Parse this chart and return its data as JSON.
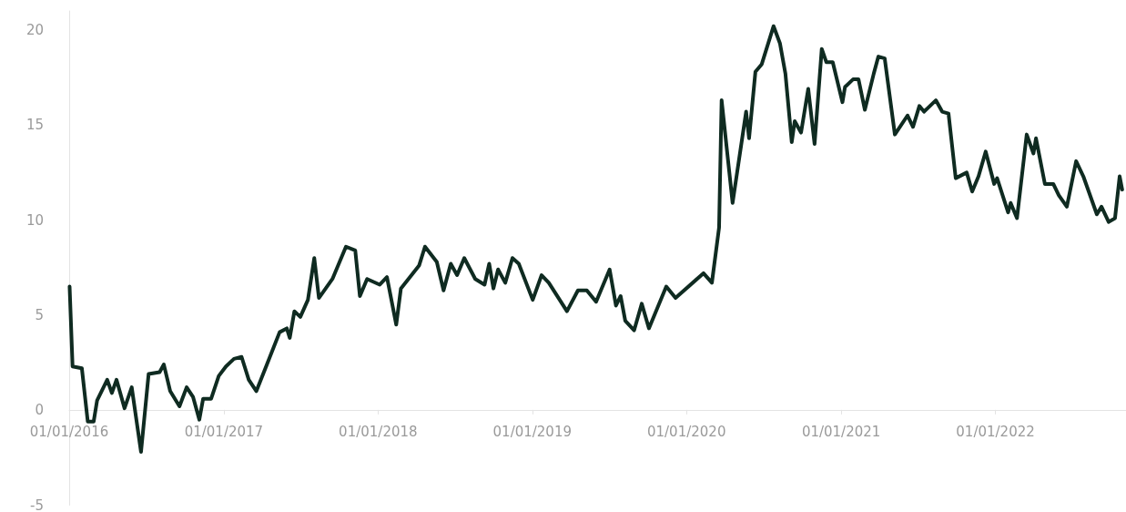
{
  "chart_data": {
    "type": "line",
    "line_style": "solid",
    "marker": "none",
    "grid": false,
    "x": [
      "2016-01-02",
      "2016-01-09",
      "2016-01-31",
      "2016-02-14",
      "2016-02-28",
      "2016-03-07",
      "2016-03-31",
      "2016-04-11",
      "2016-04-22",
      "2016-05-11",
      "2016-05-28",
      "2016-06-19",
      "2016-07-07",
      "2016-08-02",
      "2016-08-12",
      "2016-08-27",
      "2016-09-18",
      "2016-10-05",
      "2016-10-20",
      "2016-11-04",
      "2016-11-13",
      "2016-12-02",
      "2016-12-20",
      "2017-01-06",
      "2017-01-25",
      "2017-02-12",
      "2017-03-01",
      "2017-03-19",
      "2017-04-13",
      "2017-05-13",
      "2017-05-30",
      "2017-06-06",
      "2017-06-17",
      "2017-07-01",
      "2017-07-19",
      "2017-08-03",
      "2017-08-14",
      "2017-09-15",
      "2017-10-17",
      "2017-11-08",
      "2017-11-19",
      "2017-12-06",
      "2018-01-05",
      "2018-01-22",
      "2018-02-13",
      "2018-02-24",
      "2018-04-08",
      "2018-04-22",
      "2018-05-20",
      "2018-06-05",
      "2018-06-22",
      "2018-07-07",
      "2018-07-24",
      "2018-08-19",
      "2018-09-10",
      "2018-09-21",
      "2018-10-01",
      "2018-10-12",
      "2018-10-29",
      "2018-11-15",
      "2018-11-30",
      "2019-01-02",
      "2019-01-23",
      "2019-02-09",
      "2019-03-24",
      "2019-04-19",
      "2019-05-10",
      "2019-06-01",
      "2019-07-03",
      "2019-07-18",
      "2019-07-29",
      "2019-08-09",
      "2019-08-30",
      "2019-09-17",
      "2019-10-04",
      "2019-11-14",
      "2019-12-06",
      "2020-02-10",
      "2020-03-01",
      "2020-03-18",
      "2020-03-24",
      "2020-04-19",
      "2020-05-21",
      "2020-05-28",
      "2020-06-12",
      "2020-06-27",
      "2020-07-25",
      "2020-08-09",
      "2020-08-22",
      "2020-09-06",
      "2020-09-13",
      "2020-09-28",
      "2020-10-15",
      "2020-10-30",
      "2020-11-16",
      "2020-11-27",
      "2020-12-12",
      "2021-01-04",
      "2021-01-10",
      "2021-01-29",
      "2021-02-11",
      "2021-02-26",
      "2021-03-19",
      "2021-03-30",
      "2021-04-14",
      "2021-05-08",
      "2021-06-07",
      "2021-06-20",
      "2021-07-05",
      "2021-07-16",
      "2021-08-13",
      "2021-08-28",
      "2021-09-12",
      "2021-09-29",
      "2021-10-25",
      "2021-11-07",
      "2021-11-22",
      "2021-12-09",
      "2021-12-29",
      "2022-01-05",
      "2022-01-31",
      "2022-02-06",
      "2022-02-21",
      "2022-03-16",
      "2022-04-01",
      "2022-04-07",
      "2022-04-28",
      "2022-05-18",
      "2022-05-31",
      "2022-06-19",
      "2022-07-11",
      "2022-07-28",
      "2022-08-29",
      "2022-09-09",
      "2022-09-26",
      "2022-10-11",
      "2022-10-22",
      "2022-10-28"
    ],
    "series": [
      {
        "color": "#0f2b21",
        "values": [
          6.5,
          2.3,
          2.2,
          -0.6,
          -0.6,
          0.5,
          1.6,
          0.9,
          1.6,
          0.1,
          1.2,
          -2.2,
          1.9,
          2.0,
          2.4,
          1.0,
          0.2,
          1.2,
          0.7,
          -0.5,
          0.6,
          0.6,
          1.8,
          2.3,
          2.7,
          2.8,
          1.6,
          1.0,
          2.4,
          4.1,
          4.3,
          3.8,
          5.2,
          4.9,
          5.8,
          8.0,
          5.9,
          6.9,
          8.6,
          8.4,
          6.0,
          6.9,
          6.6,
          7.0,
          4.5,
          6.4,
          7.6,
          8.6,
          7.8,
          6.3,
          7.7,
          7.1,
          8.0,
          6.9,
          6.6,
          7.7,
          6.4,
          7.4,
          6.7,
          8.0,
          7.7,
          5.8,
          7.1,
          6.7,
          5.2,
          6.3,
          6.3,
          5.7,
          7.4,
          5.5,
          6.0,
          4.7,
          4.2,
          5.6,
          4.3,
          6.5,
          5.9,
          7.2,
          6.7,
          9.6,
          16.3,
          10.9,
          15.7,
          14.3,
          17.8,
          18.2,
          20.2,
          19.3,
          17.7,
          14.1,
          15.2,
          14.6,
          16.9,
          14.0,
          19.0,
          18.3,
          18.3,
          16.2,
          17.0,
          17.4,
          17.4,
          15.8,
          17.7,
          18.6,
          18.5,
          14.5,
          15.5,
          14.9,
          16.0,
          15.7,
          16.3,
          15.7,
          15.6,
          12.2,
          12.5,
          11.5,
          12.3,
          13.6,
          11.9,
          12.2,
          10.4,
          10.9,
          10.1,
          14.5,
          13.5,
          14.3,
          11.9,
          11.9,
          11.3,
          10.7,
          13.1,
          12.3,
          10.3,
          10.7,
          9.9,
          10.1,
          12.3,
          11.6
        ]
      }
    ],
    "xlim": [
      "2016-01-01",
      "2022-11-06"
    ],
    "xticks": [
      {
        "value": "2016-01-01",
        "label": "01/01/2016"
      },
      {
        "value": "2017-01-01",
        "label": "01/01/2017"
      },
      {
        "value": "2018-01-01",
        "label": "01/01/2018"
      },
      {
        "value": "2019-01-01",
        "label": "01/01/2019"
      },
      {
        "value": "2020-01-01",
        "label": "01/01/2020"
      },
      {
        "value": "2021-01-01",
        "label": "01/01/2021"
      },
      {
        "value": "2022-01-01",
        "label": "01/01/2022"
      }
    ],
    "ylim": [
      -5,
      21
    ],
    "yticks": [
      -5,
      0,
      5,
      10,
      15,
      20
    ]
  }
}
